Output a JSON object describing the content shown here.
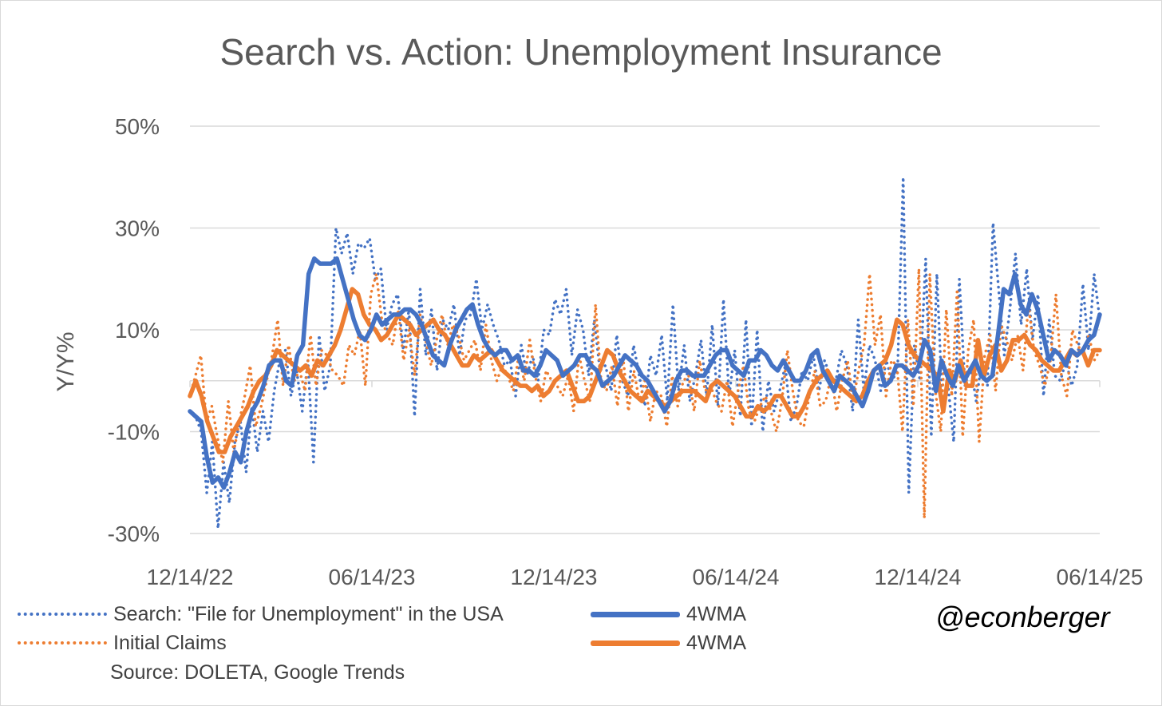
{
  "title": "Search vs. Action: Unemployment Insurance",
  "handle": "@econberger",
  "source": "Source: DOLETA, Google Trends",
  "legend": [
    {
      "label": "Search: \"File for Unemployment\" in the USA",
      "style": "dotted",
      "color": "#4472c4"
    },
    {
      "label": "Initial Claims",
      "style": "dotted",
      "color": "#ed7d31"
    },
    {
      "label": "4WMA",
      "style": "solid",
      "color": "#4472c4"
    },
    {
      "label": "4WMA",
      "style": "solid",
      "color": "#ed7d31"
    }
  ],
  "chart_data": {
    "type": "line",
    "title": "Search vs. Action: Unemployment Insurance",
    "ylabel": "Y/Y%",
    "xlabel": "",
    "ylim": [
      -30,
      50
    ],
    "yticks": [
      "50%",
      "30%",
      "10%",
      "-10%",
      "-30%"
    ],
    "ytick_values": [
      50,
      30,
      10,
      -10,
      -30
    ],
    "xticks": [
      "12/14/22",
      "06/14/23",
      "12/14/23",
      "06/14/24",
      "12/14/24",
      "06/14/25"
    ],
    "x_range": [
      "12/14/22",
      "06/14/25"
    ],
    "grid": true,
    "legend_position": "bottom",
    "series": [
      {
        "name": "Search: \"File for Unemployment\" in the USA",
        "color": "#4472c4",
        "style": "dotted",
        "values": [
          -6,
          -7,
          -10,
          -22,
          -12,
          -29,
          -16,
          -24,
          -12,
          -8,
          -18,
          -5,
          -14,
          -6,
          -12,
          -2,
          4,
          6,
          -3,
          2,
          -6,
          4,
          -16,
          9,
          -2,
          3,
          30,
          25,
          29,
          21,
          27,
          26,
          28,
          20,
          22,
          10,
          15,
          17,
          6,
          14,
          -7,
          18,
          5,
          14,
          2,
          12,
          10,
          15,
          5,
          12,
          13,
          20,
          10,
          15,
          11,
          8,
          3,
          4,
          -3,
          7,
          1,
          5,
          0,
          10,
          9,
          16,
          13,
          18,
          5,
          14,
          10,
          1,
          12,
          2,
          3,
          -2,
          9,
          0,
          -3,
          7,
          1,
          -5,
          5,
          1,
          9,
          -4,
          15,
          -2,
          7,
          -4,
          1,
          8,
          -3,
          11,
          -5,
          16,
          -3,
          6,
          -7,
          12,
          -9,
          10,
          -10,
          0,
          -6,
          -2,
          3,
          -8,
          -5,
          2,
          0,
          5,
          -2,
          4,
          1,
          0,
          6,
          3,
          -6,
          12,
          -2,
          7,
          4,
          -2,
          4,
          0,
          2,
          40,
          -22,
          7,
          0,
          24,
          -11,
          21,
          -5,
          -1,
          -12,
          20,
          -1,
          3,
          -4,
          4,
          -1,
          31,
          18,
          5,
          14,
          25,
          11,
          22,
          8,
          17,
          -3,
          12,
          1,
          0,
          4,
          -1,
          3,
          19,
          6,
          21,
          12
        ]
      },
      {
        "name": "Initial Claims",
        "color": "#ed7d31",
        "style": "dotted",
        "values": [
          -3,
          1,
          5,
          -8,
          -5,
          -11,
          -16,
          -4,
          -14,
          -8,
          -3,
          3,
          -9,
          -5,
          0,
          5,
          12,
          -1,
          7,
          0,
          2,
          -2,
          9,
          -1,
          6,
          5,
          2,
          1,
          -1,
          7,
          5,
          10,
          -1,
          17,
          21,
          12,
          9,
          7,
          14,
          4,
          10,
          1,
          13,
          8,
          3,
          8,
          13,
          7,
          11,
          9,
          4,
          6,
          8,
          2,
          11,
          4,
          0,
          3,
          1,
          -2,
          5,
          0,
          8,
          1,
          -4,
          2,
          0,
          -1,
          -3,
          1,
          -6,
          5,
          0,
          -4,
          15,
          0,
          -2,
          3,
          -5,
          5,
          -6,
          2,
          -4,
          0,
          -8,
          -2,
          -3,
          -9,
          1,
          -5,
          0,
          1,
          -6,
          4,
          -2,
          -1,
          -4,
          -6,
          0,
          -9,
          -2,
          3,
          -6,
          -8,
          -5,
          -3,
          -6,
          -10,
          -4,
          6,
          -2,
          -8,
          -9,
          -3,
          2,
          -5,
          -4,
          1,
          -6,
          0,
          4,
          -4,
          2,
          7,
          21,
          7,
          13,
          -3,
          4,
          3,
          -10,
          12,
          -5,
          22,
          -27,
          21,
          -2,
          -10,
          14,
          -3,
          18,
          -11,
          6,
          12,
          -12,
          5,
          9,
          -2,
          11,
          8,
          4,
          9,
          2,
          15,
          6,
          3,
          -1,
          4,
          17,
          1,
          -3,
          10,
          7,
          5,
          9,
          4,
          6
        ]
      },
      {
        "name": "4WMA",
        "color": "#4472c4",
        "style": "solid",
        "values": [
          -6,
          -7,
          -8,
          -15,
          -20,
          -19,
          -21,
          -18,
          -14,
          -16,
          -10,
          -6,
          -4,
          -1,
          3,
          4,
          4,
          0,
          -1,
          5,
          7,
          21,
          24,
          23,
          23,
          23,
          24,
          20,
          16,
          12,
          9,
          8,
          10,
          13,
          11,
          12,
          13,
          13,
          14,
          14,
          13,
          11,
          8,
          5,
          4,
          3,
          7,
          10,
          12,
          14,
          15,
          11,
          8,
          6,
          5,
          6,
          6,
          4,
          5,
          2,
          2,
          1,
          3,
          6,
          5,
          4,
          1,
          2,
          3,
          5,
          5,
          3,
          2,
          -1,
          0,
          1,
          3,
          5,
          4,
          3,
          1,
          0,
          -2,
          -4,
          -6,
          -4,
          0,
          2,
          2,
          1,
          1,
          1,
          3,
          5,
          6,
          6,
          3,
          2,
          1,
          4,
          4,
          6,
          5,
          3,
          2,
          4,
          2,
          0,
          0,
          2,
          5,
          6,
          2,
          0,
          -2,
          1,
          0,
          -1,
          -3,
          -5,
          -2,
          2,
          3,
          -1,
          0,
          3,
          3,
          2,
          1,
          3,
          8,
          6,
          -2,
          4,
          1,
          -1,
          3,
          0,
          2,
          4,
          1,
          0,
          1,
          9,
          18,
          17,
          21,
          15,
          13,
          17,
          14,
          9,
          4,
          6,
          5,
          3,
          6,
          5,
          6,
          8,
          9,
          13
        ]
      },
      {
        "name": "4WMA",
        "color": "#ed7d31",
        "style": "solid",
        "values": [
          -3,
          0,
          -3,
          -8,
          -11,
          -14,
          -14,
          -11,
          -9,
          -7,
          -5,
          -2,
          0,
          1,
          3,
          6,
          5,
          4,
          3,
          2,
          3,
          1,
          4,
          3,
          5,
          7,
          10,
          14,
          18,
          17,
          13,
          11,
          10,
          8,
          9,
          11,
          13,
          12,
          11,
          9,
          10,
          11,
          12,
          10,
          9,
          7,
          5,
          3,
          3,
          5,
          4,
          5,
          6,
          4,
          2,
          1,
          0,
          -1,
          -1,
          -2,
          -1,
          -3,
          -2,
          0,
          1,
          2,
          -1,
          -4,
          -4,
          -3,
          0,
          3,
          6,
          5,
          2,
          0,
          -2,
          -3,
          -4,
          -2,
          -3,
          -4,
          -5,
          -4,
          -3,
          -2,
          -2,
          -2,
          -3,
          -4,
          -1,
          0,
          -1,
          -2,
          -3,
          -5,
          -7,
          -7,
          -5,
          -6,
          -5,
          -3,
          -3,
          -5,
          -7,
          -7,
          -5,
          -2,
          0,
          1,
          2,
          0,
          -1,
          -2,
          -3,
          -4,
          -3,
          0,
          2,
          3,
          4,
          7,
          12,
          11,
          7,
          5,
          4,
          3,
          2,
          1,
          -6,
          2,
          0,
          4,
          -1,
          -1,
          8,
          1,
          5,
          7,
          2,
          4,
          8,
          8,
          9,
          7,
          6,
          4,
          3,
          2,
          2,
          4,
          6,
          5,
          6,
          3,
          6,
          6
        ]
      }
    ]
  }
}
